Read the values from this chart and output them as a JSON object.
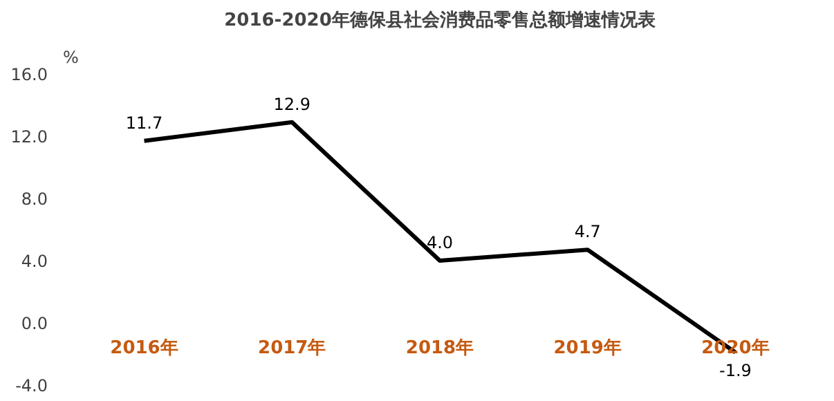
{
  "chart_data": {
    "type": "line",
    "title": "2016-2020年德保县社会消费品零售总额增速情况表",
    "ylabel": "%",
    "categories": [
      "2016年",
      "2017年",
      "2018年",
      "2019年",
      "2020年"
    ],
    "series": [
      {
        "color": "#000000",
        "values": [
          11.7,
          12.9,
          4.0,
          4.7,
          -1.9
        ],
        "value_labels": [
          "11.7",
          "12.9",
          "4.0",
          "4.7",
          "-1.9"
        ]
      }
    ],
    "ylim": [
      -4,
      16
    ],
    "yticks": [
      {
        "value": -4,
        "label": "-4.0"
      },
      {
        "value": 0,
        "label": "0.0"
      },
      {
        "value": 4,
        "label": "4.0"
      },
      {
        "value": 8,
        "label": "8.0"
      },
      {
        "value": 12,
        "label": "12.0"
      },
      {
        "value": 16,
        "label": "16.0"
      }
    ],
    "grid": false,
    "marker": "none",
    "line_style": "solid"
  }
}
